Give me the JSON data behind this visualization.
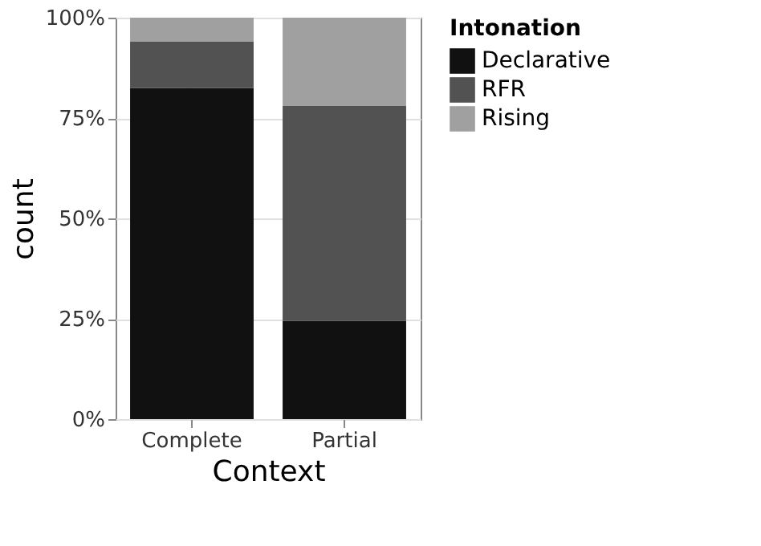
{
  "chart_data": {
    "type": "bar",
    "stacked": true,
    "xlabel": "Context",
    "ylabel": "count",
    "legend_title": "Intonation",
    "categories": [
      "Complete",
      "Partial"
    ],
    "series": [
      {
        "name": "Declarative",
        "color": "#111111",
        "values": [
          82.5,
          24.5
        ]
      },
      {
        "name": "RFR",
        "color": "#525252",
        "values": [
          11.5,
          53.5
        ]
      },
      {
        "name": "Rising",
        "color": "#a0a0a0",
        "values": [
          6,
          22
        ]
      }
    ],
    "ylim": [
      0,
      100
    ],
    "yticks": [
      {
        "value": 0,
        "label": "0%"
      },
      {
        "value": 25,
        "label": "25%"
      },
      {
        "value": 50,
        "label": "50%"
      },
      {
        "value": 75,
        "label": "75%"
      },
      {
        "value": 100,
        "label": "100%"
      }
    ],
    "grid": true,
    "legend": "right"
  }
}
